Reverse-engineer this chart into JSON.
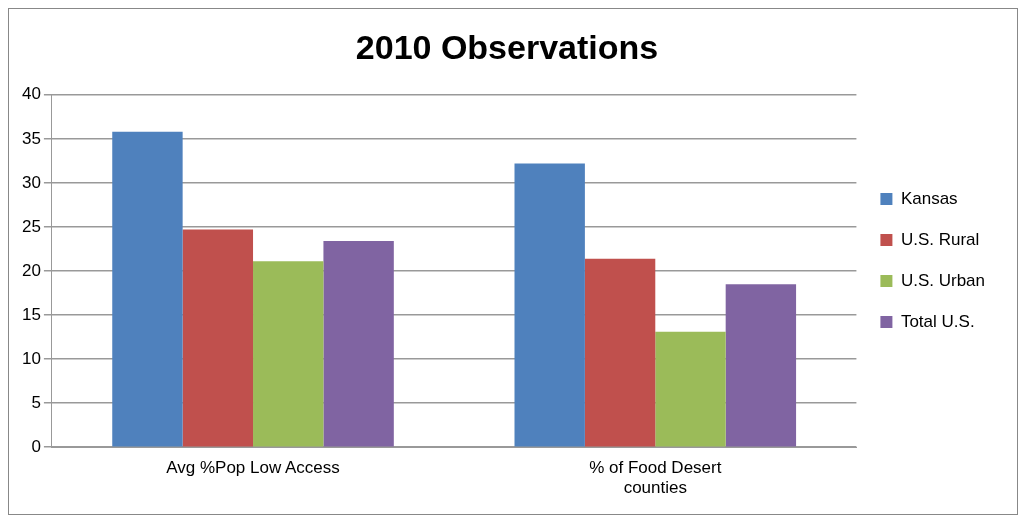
{
  "chart_data": {
    "type": "bar",
    "title": "2010 Observations",
    "categories": [
      "Avg %Pop Low Access",
      "% of Food Desert counties"
    ],
    "series": [
      {
        "name": "Kansas",
        "color": "#4f81bd",
        "values": [
          35.8,
          32.2
        ]
      },
      {
        "name": "U.S. Rural",
        "color": "#c0504d",
        "values": [
          24.7,
          21.4
        ]
      },
      {
        "name": "U.S. Urban",
        "color": "#9bbb59",
        "values": [
          21.1,
          13.1
        ]
      },
      {
        "name": "Total U.S.",
        "color": "#8064a2",
        "values": [
          23.4,
          18.5
        ]
      }
    ],
    "ylim": [
      0,
      40
    ],
    "yticks": [
      0,
      5,
      10,
      15,
      20,
      25,
      30,
      35,
      40
    ],
    "grid": "y",
    "legend": "right"
  }
}
